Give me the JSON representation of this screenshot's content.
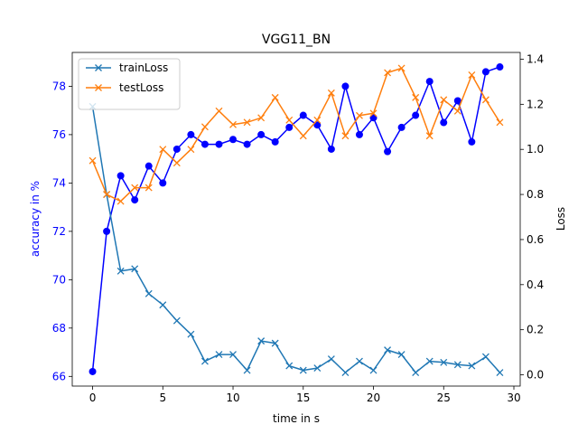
{
  "chart_data": {
    "type": "line",
    "title": "VGG11_BN",
    "xlabel": "time in s",
    "ylabel_left": "accuracy in %",
    "ylabel_right": "Loss",
    "xlim": [
      -1.45,
      30.45
    ],
    "ylim_left": [
      65.6,
      79.4
    ],
    "ylim_right": [
      -0.05,
      1.43
    ],
    "x_ticks": [
      0,
      5,
      10,
      15,
      20,
      25,
      30
    ],
    "y_ticks_left": [
      66,
      68,
      70,
      72,
      74,
      76,
      78
    ],
    "y_ticks_right": [
      0.0,
      0.2,
      0.4,
      0.6,
      0.8,
      1.0,
      1.2,
      1.4
    ],
    "x_tick_labels": [
      "0",
      "5",
      "10",
      "15",
      "20",
      "25",
      "30"
    ],
    "y_tick_labels_left": [
      "66",
      "68",
      "70",
      "72",
      "74",
      "76",
      "78"
    ],
    "y_tick_labels_right": [
      "0.0",
      "0.2",
      "0.4",
      "0.6",
      "0.8",
      "1.0",
      "1.2",
      "1.4"
    ],
    "legend": {
      "placement": "top-left",
      "entries": [
        "trainLoss",
        "testLoss"
      ]
    },
    "grid": false,
    "x": [
      0,
      1,
      2,
      3,
      4,
      5,
      6,
      7,
      8,
      9,
      10,
      11,
      12,
      13,
      14,
      15,
      16,
      17,
      18,
      19,
      20,
      21,
      22,
      23,
      24,
      25,
      26,
      27,
      28,
      29
    ],
    "series": [
      {
        "name": "",
        "axis": "left",
        "color": "#0000ff",
        "marker": "circle",
        "values": [
          66.2,
          72.0,
          74.3,
          73.3,
          74.7,
          74.0,
          75.4,
          76.0,
          75.6,
          75.6,
          75.8,
          75.6,
          76.0,
          75.7,
          76.3,
          76.8,
          76.4,
          75.4,
          78.0,
          76.0,
          76.7,
          75.3,
          76.3,
          76.8,
          78.2,
          76.5,
          77.4,
          75.7,
          78.6,
          78.8
        ]
      },
      {
        "name": "trainLoss",
        "axis": "right",
        "color": "#1f77b4",
        "marker": "x",
        "values": [
          1.19,
          0.8,
          0.46,
          0.47,
          0.36,
          0.31,
          0.24,
          0.18,
          0.06,
          0.09,
          0.09,
          0.02,
          0.15,
          0.14,
          0.04,
          0.02,
          0.03,
          0.07,
          0.01,
          0.06,
          0.02,
          0.11,
          0.09,
          0.01,
          0.06,
          0.055,
          0.045,
          0.04,
          0.08,
          0.01
        ]
      },
      {
        "name": "testLoss",
        "axis": "right",
        "color": "#ff7f0e",
        "marker": "x",
        "values": [
          0.95,
          0.8,
          0.77,
          0.83,
          0.83,
          1.0,
          0.94,
          1.0,
          1.1,
          1.17,
          1.11,
          1.12,
          1.14,
          1.23,
          1.13,
          1.06,
          1.13,
          1.25,
          1.06,
          1.15,
          1.16,
          1.34,
          1.36,
          1.23,
          1.06,
          1.22,
          1.17,
          1.33,
          1.22,
          1.12
        ]
      }
    ]
  }
}
